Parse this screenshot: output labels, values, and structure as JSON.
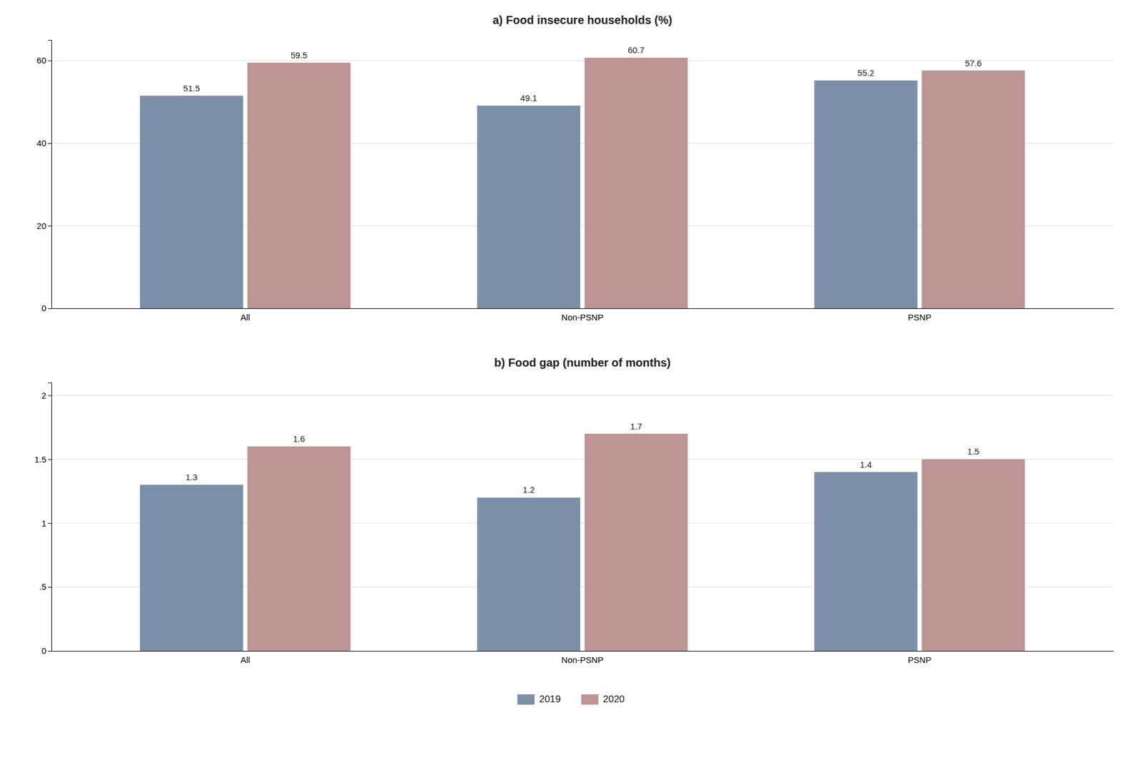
{
  "chart_data": [
    {
      "type": "bar",
      "title": "a) Food insecure households (%)",
      "categories": [
        "All",
        "Non-PSNP",
        "PSNP"
      ],
      "series": [
        {
          "name": "2019",
          "color": "#7b8fa8",
          "values": [
            51.5,
            49.1,
            55.2
          ]
        },
        {
          "name": "2020",
          "color": "#be9494",
          "values": [
            59.5,
            60.7,
            57.6
          ]
        }
      ],
      "ylim": [
        0,
        65
      ],
      "yticks": [
        0,
        20,
        40,
        60
      ],
      "grid": true,
      "data_labels": true
    },
    {
      "type": "bar",
      "title": "b) Food gap (number of months)",
      "categories": [
        "All",
        "Non-PSNP",
        "PSNP"
      ],
      "series": [
        {
          "name": "2019",
          "color": "#7b8fa8",
          "values": [
            1.3,
            1.2,
            1.4
          ]
        },
        {
          "name": "2020",
          "color": "#be9494",
          "values": [
            1.6,
            1.7,
            1.5
          ]
        }
      ],
      "ylim": [
        0,
        2.1
      ],
      "yticks": [
        0,
        {
          "value": 0.5,
          "label": ".5"
        },
        1,
        1.5,
        2
      ],
      "grid": true,
      "data_labels": true,
      "legend": "bottom"
    }
  ]
}
